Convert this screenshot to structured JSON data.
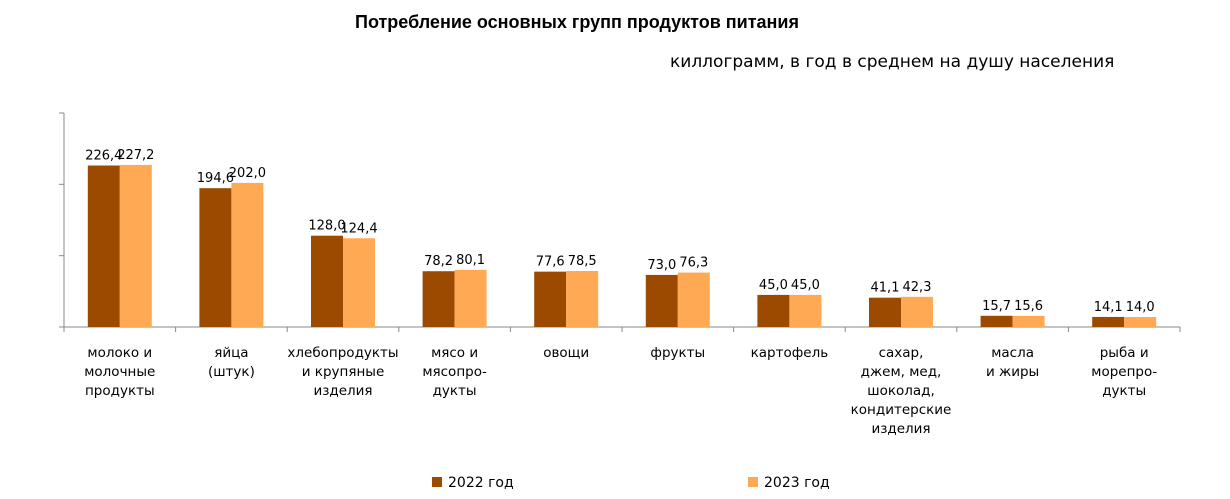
{
  "chart_data": {
    "type": "bar",
    "title": "Потребление основных групп продуктов питания",
    "subtitle": "киллограмм, в год в среднем на душу населения",
    "categories": [
      "молоко и\nмолочные\nпродукты",
      "яйца\n(штук)",
      "хлебопродукты\nи крупяные\nизделия",
      "мясо и\nмясопро-\nдукты",
      "овощи",
      "фрукты",
      "картофель",
      "сахар,\nджем, мед,\nшоколад,\nкондитерские\nизделия",
      "масла\nи жиры",
      "рыба и\nморепро-\nдукты"
    ],
    "series": [
      {
        "name": "2022 год",
        "color": "#9C4A00",
        "values": [
          226.4,
          194.6,
          128.0,
          78.2,
          77.6,
          73.0,
          45.0,
          41.1,
          15.7,
          14.1
        ],
        "labels": [
          "226,4",
          "194,6",
          "128,0",
          "78,2",
          "77,6",
          "73,0",
          "45,0",
          "41,1",
          "15,7",
          "14,1"
        ]
      },
      {
        "name": "2023 год",
        "color": "#FFA955",
        "values": [
          227.2,
          202.0,
          124.4,
          80.1,
          78.5,
          76.3,
          45.0,
          42.3,
          15.6,
          14.0
        ],
        "labels": [
          "227,2",
          "202,0",
          "124,4",
          "80,1",
          "78,5",
          "76,3",
          "45,0",
          "42,3",
          "15,6",
          "14,0"
        ]
      }
    ],
    "ylim": [
      0,
      300
    ],
    "gridlines": false,
    "legend_position": "bottom"
  }
}
